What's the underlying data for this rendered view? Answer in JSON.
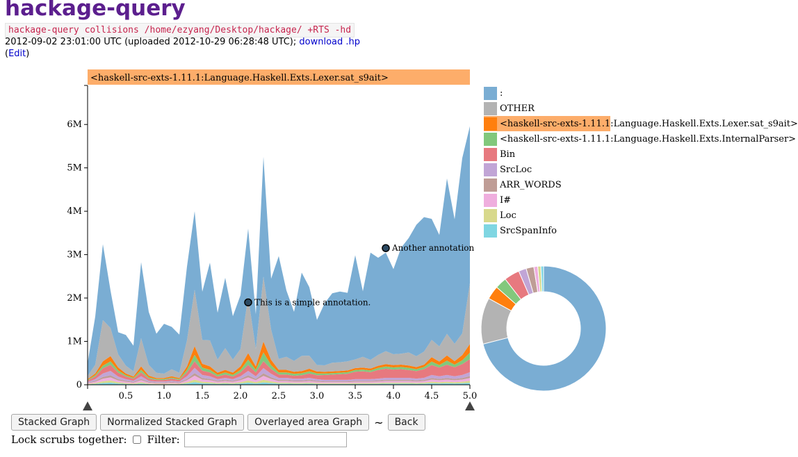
{
  "header": {
    "title": "hackage-query",
    "command": "hackage-query collisions /home/ezyang/Desktop/hackage/ +RTS -hd",
    "meta_text": "2012-09-02 23:01:00 UTC (uploaded 2012-10-29 06:28:48 UTC); ",
    "download_link": "download .hp",
    "edit_open": "(",
    "edit_link": "Edit",
    "edit_close": ")"
  },
  "highlight_label": "<haskell-src-exts-1.11.1:Language.Haskell.Exts.Lexer.sat_s9ait>",
  "annotations": [
    {
      "text": "This is a simple annotation.",
      "x": 2.1,
      "y": 1900000
    },
    {
      "text": "Another annotation",
      "x": 3.9,
      "y": 3150000
    }
  ],
  "legend": [
    {
      "label": ":",
      "color": "#7aadd3",
      "active": false
    },
    {
      "label": "OTHER",
      "color": "#b3b3b3",
      "active": false
    },
    {
      "label": "<haskell-src-exts-1.11.1:Language.Haskell.Exts.Lexer.sat_s9ait>",
      "color": "#ff7f0e",
      "active": true
    },
    {
      "label": "<haskell-src-exts-1.11.1:Language.Haskell.Exts.InternalParser>",
      "color": "#82c87c",
      "active": false
    },
    {
      "label": "Bin",
      "color": "#e7797f",
      "active": false
    },
    {
      "label": "SrcLoc",
      "color": "#c1a5d6",
      "active": false
    },
    {
      "label": "ARR_WORDS",
      "color": "#bf9d96",
      "active": false
    },
    {
      "label": "I#",
      "color": "#efaede",
      "active": false
    },
    {
      "label": "Loc",
      "color": "#d8d98c",
      "active": false
    },
    {
      "label": "SrcSpanInfo",
      "color": "#7fd6e2",
      "active": false
    }
  ],
  "controls": {
    "stacked": "Stacked Graph",
    "normalized": "Normalized Stacked Graph",
    "overlayed": "Overlayed area Graph",
    "tilde": "~",
    "back": "Back",
    "lock_label": "Lock scrubs together:",
    "filter_label": "Filter:",
    "filter_value": ""
  },
  "chart_data": {
    "type": "area",
    "stacked": true,
    "xlim": [
      0,
      5.0
    ],
    "ylim": [
      0,
      6900000
    ],
    "x_ticks": [
      0.5,
      1.0,
      1.5,
      2.0,
      2.5,
      3.0,
      3.5,
      4.0,
      4.5,
      5.0
    ],
    "y_ticks": [
      {
        "value": 1000000,
        "label": "1M"
      },
      {
        "value": 2000000,
        "label": "2M"
      },
      {
        "value": 3000000,
        "label": "3M"
      },
      {
        "value": 4000000,
        "label": "4M"
      },
      {
        "value": 5000000,
        "label": "5M"
      },
      {
        "value": 6000000,
        "label": "6M"
      }
    ],
    "x": [
      0,
      0.1,
      0.2,
      0.3,
      0.4,
      0.5,
      0.6,
      0.7,
      0.8,
      0.9,
      1.0,
      1.1,
      1.2,
      1.3,
      1.4,
      1.5,
      1.6,
      1.7,
      1.8,
      1.9,
      2.0,
      2.1,
      2.2,
      2.3,
      2.4,
      2.5,
      2.6,
      2.7,
      2.8,
      2.9,
      3.0,
      3.1,
      3.2,
      3.3,
      3.4,
      3.5,
      3.6,
      3.7,
      3.8,
      3.9,
      4.0,
      4.1,
      4.2,
      4.3,
      4.4,
      4.5,
      4.6,
      4.7,
      4.8,
      4.9,
      5.0
    ],
    "series": [
      {
        "name": "SrcSpanInfo",
        "color": "#7fd6e2",
        "values": [
          10000,
          20000,
          40000,
          50000,
          30000,
          20000,
          15000,
          30000,
          15000,
          12000,
          12000,
          15000,
          12000,
          30000,
          60000,
          35000,
          30000,
          20000,
          25000,
          20000,
          30000,
          50000,
          30000,
          55000,
          40000,
          25000,
          25000,
          22000,
          22000,
          25000,
          20000,
          18000,
          18000,
          18000,
          18000,
          20000,
          20000,
          20000,
          22000,
          25000,
          25000,
          25000,
          25000,
          22000,
          25000,
          35000,
          30000,
          35000,
          30000,
          35000,
          45000
        ]
      },
      {
        "name": "Loc",
        "color": "#d8d98c",
        "values": [
          10000,
          20000,
          40000,
          50000,
          30000,
          20000,
          15000,
          30000,
          15000,
          12000,
          12000,
          15000,
          12000,
          30000,
          60000,
          35000,
          30000,
          20000,
          25000,
          20000,
          30000,
          50000,
          30000,
          60000,
          40000,
          25000,
          25000,
          22000,
          22000,
          25000,
          20000,
          18000,
          18000,
          18000,
          18000,
          20000,
          20000,
          20000,
          22000,
          25000,
          25000,
          25000,
          25000,
          22000,
          25000,
          35000,
          30000,
          35000,
          30000,
          35000,
          45000
        ]
      },
      {
        "name": "I#",
        "color": "#efaede",
        "values": [
          15000,
          30000,
          60000,
          70000,
          40000,
          30000,
          20000,
          45000,
          20000,
          15000,
          15000,
          20000,
          15000,
          45000,
          90000,
          50000,
          45000,
          30000,
          35000,
          30000,
          45000,
          70000,
          45000,
          90000,
          55000,
          35000,
          35000,
          30000,
          30000,
          35000,
          30000,
          25000,
          25000,
          25000,
          25000,
          30000,
          30000,
          30000,
          32000,
          35000,
          35000,
          35000,
          35000,
          32000,
          35000,
          50000,
          45000,
          50000,
          45000,
          50000,
          65000
        ]
      },
      {
        "name": "ARR_WORDS",
        "color": "#bf9d96",
        "values": [
          10000,
          20000,
          40000,
          50000,
          30000,
          20000,
          15000,
          30000,
          15000,
          12000,
          12000,
          15000,
          12000,
          30000,
          60000,
          35000,
          30000,
          20000,
          25000,
          20000,
          30000,
          50000,
          30000,
          60000,
          40000,
          25000,
          25000,
          22000,
          22000,
          25000,
          20000,
          18000,
          18000,
          18000,
          18000,
          20000,
          20000,
          20000,
          22000,
          25000,
          25000,
          25000,
          25000,
          22000,
          25000,
          35000,
          30000,
          35000,
          30000,
          35000,
          45000
        ]
      },
      {
        "name": "SrcLoc",
        "color": "#c1a5d6",
        "values": [
          20000,
          40000,
          80000,
          100000,
          60000,
          40000,
          30000,
          60000,
          30000,
          25000,
          25000,
          30000,
          25000,
          60000,
          120000,
          70000,
          60000,
          40000,
          50000,
          40000,
          60000,
          100000,
          60000,
          120000,
          80000,
          50000,
          50000,
          45000,
          45000,
          50000,
          40000,
          35000,
          35000,
          35000,
          35000,
          40000,
          40000,
          40000,
          45000,
          50000,
          50000,
          50000,
          50000,
          45000,
          50000,
          70000,
          60000,
          70000,
          60000,
          70000,
          90000
        ]
      },
      {
        "name": "Bin",
        "color": "#e7797f",
        "values": [
          30000,
          60000,
          120000,
          140000,
          90000,
          60000,
          45000,
          90000,
          45000,
          35000,
          35000,
          45000,
          35000,
          90000,
          150000,
          100000,
          90000,
          60000,
          75000,
          60000,
          90000,
          140000,
          90000,
          160000,
          110000,
          75000,
          75000,
          65000,
          80000,
          100000,
          90000,
          110000,
          120000,
          130000,
          140000,
          170000,
          180000,
          160000,
          200000,
          210000,
          190000,
          200000,
          180000,
          170000,
          200000,
          230000,
          200000,
          240000,
          210000,
          250000,
          300000
        ]
      },
      {
        "name": "<haskell-src-exts-1.11.1:Language.Haskell.Exts.InternalParser>",
        "color": "#82c87c",
        "values": [
          15000,
          30000,
          60000,
          80000,
          50000,
          30000,
          20000,
          60000,
          30000,
          20000,
          20000,
          25000,
          20000,
          60000,
          150000,
          70000,
          60000,
          40000,
          50000,
          40000,
          60000,
          120000,
          60000,
          200000,
          90000,
          50000,
          50000,
          45000,
          45000,
          50000,
          40000,
          35000,
          35000,
          35000,
          35000,
          40000,
          40000,
          40000,
          45000,
          50000,
          50000,
          50000,
          50000,
          45000,
          50000,
          80000,
          60000,
          90000,
          60000,
          90000,
          150000
        ]
      },
      {
        "name": "<haskell-src-exts-1.11.1:Language.Haskell.Exts.Lexer.sat_s9ait>",
        "color": "#ff7f0e",
        "values": [
          20000,
          40000,
          100000,
          120000,
          70000,
          40000,
          30000,
          80000,
          40000,
          25000,
          25000,
          30000,
          25000,
          80000,
          200000,
          90000,
          80000,
          50000,
          60000,
          50000,
          80000,
          150000,
          80000,
          250000,
          120000,
          60000,
          60000,
          50000,
          50000,
          60000,
          45000,
          40000,
          40000,
          40000,
          40000,
          45000,
          45000,
          45000,
          50000,
          55000,
          55000,
          55000,
          55000,
          50000,
          55000,
          100000,
          80000,
          120000,
          80000,
          120000,
          200000
        ]
      },
      {
        "name": "OTHER",
        "color": "#b3b3b3",
        "values": [
          70000,
          200000,
          950000,
          650000,
          300000,
          180000,
          120000,
          650000,
          250000,
          120000,
          100000,
          160000,
          120000,
          600000,
          1300000,
          550000,
          600000,
          300000,
          500000,
          300000,
          400000,
          1300000,
          400000,
          1500000,
          700000,
          250000,
          300000,
          250000,
          350000,
          300000,
          150000,
          150000,
          200000,
          200000,
          210000,
          200000,
          250000,
          200000,
          250000,
          300000,
          250000,
          250000,
          300000,
          250000,
          300000,
          400000,
          350000,
          500000,
          400000,
          500000,
          1400000
        ]
      },
      {
        "name": ":",
        "color": "#7aadd3",
        "values": [
          300000,
          1110000,
          1750000,
          860000,
          510000,
          710000,
          590000,
          1750000,
          1220000,
          900000,
          1150000,
          980000,
          880000,
          1700000,
          1810000,
          1110000,
          1790000,
          1080000,
          1620000,
          1000000,
          1240000,
          1570000,
          800000,
          2760000,
          1170000,
          2370000,
          1530000,
          1130000,
          1920000,
          1580000,
          1040000,
          1430000,
          1600000,
          1630000,
          1580000,
          2400000,
          1510000,
          2470000,
          2240000,
          2270000,
          1960000,
          2440000,
          2640000,
          3030000,
          3100000,
          2790000,
          2570000,
          3580000,
          2870000,
          4040000,
          3620000
        ]
      }
    ]
  },
  "donut": {
    "slices": [
      {
        "name": ":",
        "color": "#7aadd3",
        "value": 0.71
      },
      {
        "name": "OTHER",
        "color": "#b3b3b3",
        "value": 0.12
      },
      {
        "name": "<haskell-src-exts-1.11.1:Language.Haskell.Exts.Lexer.sat_s9ait>",
        "color": "#ff7f0e",
        "value": 0.035
      },
      {
        "name": "<haskell-src-exts-1.11.1:Language.Haskell.Exts.InternalParser>",
        "color": "#82c87c",
        "value": 0.03
      },
      {
        "name": "Bin",
        "color": "#e7797f",
        "value": 0.04
      },
      {
        "name": "SrcLoc",
        "color": "#c1a5d6",
        "value": 0.02
      },
      {
        "name": "ARR_WORDS",
        "color": "#bf9d96",
        "value": 0.02
      },
      {
        "name": "I#",
        "color": "#efaede",
        "value": 0.01
      },
      {
        "name": "Loc",
        "color": "#d8d98c",
        "value": 0.008
      },
      {
        "name": "SrcSpanInfo",
        "color": "#7fd6e2",
        "value": 0.007
      }
    ]
  }
}
